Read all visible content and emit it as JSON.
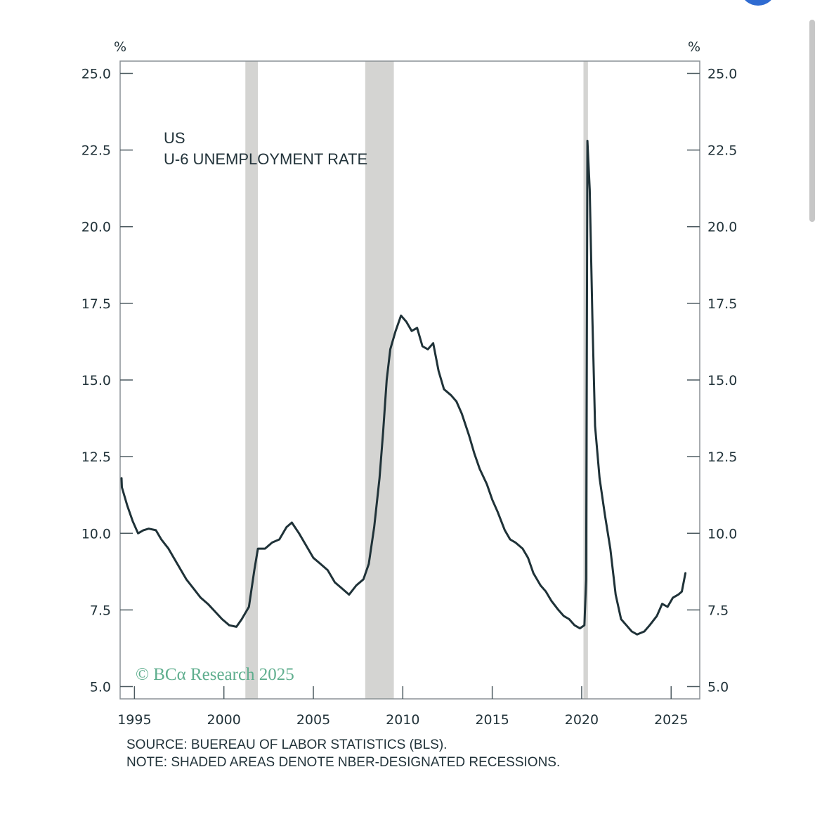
{
  "chart_data": {
    "type": "line",
    "title": "US",
    "subtitle": "U-6 UNEMPLOYMENT RATE",
    "y_unit_left": "%",
    "y_unit_right": "%",
    "xlim": [
      1994.2,
      2026.6
    ],
    "ylim": [
      4.6,
      25.4
    ],
    "x_ticks": [
      1995,
      2000,
      2005,
      2010,
      2015,
      2020,
      2025
    ],
    "y_tick_labels": [
      "5.0",
      "7.5",
      "10.0",
      "12.5",
      "15.0",
      "17.5",
      "20.0",
      "22.5",
      "25.0"
    ],
    "y_ticks": [
      5.0,
      7.5,
      10.0,
      12.5,
      15.0,
      17.5,
      20.0,
      22.5,
      25.0
    ],
    "grid": false,
    "line_color": "#1f3238",
    "recession_color": "#d4d4d2",
    "recessions": [
      {
        "start": 2001.2,
        "end": 2001.9
      },
      {
        "start": 2007.9,
        "end": 2009.5
      },
      {
        "start": 2020.1,
        "end": 2020.35
      }
    ],
    "series": [
      {
        "points": [
          [
            1994.0,
            11.8
          ],
          [
            1994.3,
            11.5
          ],
          [
            1994.6,
            10.9
          ],
          [
            1994.9,
            10.4
          ],
          [
            1995.2,
            10.0
          ],
          [
            1995.5,
            10.1
          ],
          [
            1995.8,
            10.15
          ],
          [
            1996.2,
            10.1
          ],
          [
            1996.5,
            9.8
          ],
          [
            1996.9,
            9.5
          ],
          [
            1997.2,
            9.2
          ],
          [
            1997.6,
            8.8
          ],
          [
            1997.9,
            8.5
          ],
          [
            1998.3,
            8.2
          ],
          [
            1998.7,
            7.9
          ],
          [
            1999.1,
            7.7
          ],
          [
            1999.5,
            7.45
          ],
          [
            1999.9,
            7.2
          ],
          [
            2000.3,
            7.0
          ],
          [
            2000.7,
            6.95
          ],
          [
            2001.0,
            7.2
          ],
          [
            2001.4,
            7.6
          ],
          [
            2001.7,
            8.8
          ],
          [
            2001.9,
            9.5
          ],
          [
            2002.3,
            9.5
          ],
          [
            2002.7,
            9.7
          ],
          [
            2003.1,
            9.8
          ],
          [
            2003.5,
            10.2
          ],
          [
            2003.8,
            10.35
          ],
          [
            2004.2,
            10.0
          ],
          [
            2004.6,
            9.6
          ],
          [
            2005.0,
            9.2
          ],
          [
            2005.4,
            9.0
          ],
          [
            2005.8,
            8.8
          ],
          [
            2006.2,
            8.4
          ],
          [
            2006.6,
            8.2
          ],
          [
            2007.0,
            8.0
          ],
          [
            2007.4,
            8.3
          ],
          [
            2007.8,
            8.5
          ],
          [
            2008.1,
            9.0
          ],
          [
            2008.4,
            10.2
          ],
          [
            2008.7,
            11.8
          ],
          [
            2008.9,
            13.3
          ],
          [
            2009.1,
            15.0
          ],
          [
            2009.3,
            16.0
          ],
          [
            2009.6,
            16.6
          ],
          [
            2009.9,
            17.1
          ],
          [
            2010.2,
            16.9
          ],
          [
            2010.5,
            16.6
          ],
          [
            2010.8,
            16.7
          ],
          [
            2011.1,
            16.1
          ],
          [
            2011.4,
            16.0
          ],
          [
            2011.7,
            16.2
          ],
          [
            2012.0,
            15.3
          ],
          [
            2012.3,
            14.7
          ],
          [
            2012.7,
            14.5
          ],
          [
            2013.0,
            14.3
          ],
          [
            2013.3,
            13.9
          ],
          [
            2013.7,
            13.2
          ],
          [
            2014.0,
            12.6
          ],
          [
            2014.3,
            12.1
          ],
          [
            2014.7,
            11.6
          ],
          [
            2015.0,
            11.1
          ],
          [
            2015.3,
            10.7
          ],
          [
            2015.7,
            10.1
          ],
          [
            2016.0,
            9.8
          ],
          [
            2016.3,
            9.7
          ],
          [
            2016.7,
            9.5
          ],
          [
            2017.0,
            9.2
          ],
          [
            2017.3,
            8.7
          ],
          [
            2017.7,
            8.3
          ],
          [
            2018.0,
            8.1
          ],
          [
            2018.3,
            7.8
          ],
          [
            2018.7,
            7.5
          ],
          [
            2019.0,
            7.3
          ],
          [
            2019.3,
            7.2
          ],
          [
            2019.6,
            7.0
          ],
          [
            2019.9,
            6.9
          ],
          [
            2020.15,
            7.0
          ],
          [
            2020.25,
            8.5
          ],
          [
            2020.32,
            22.8
          ],
          [
            2020.45,
            21.2
          ],
          [
            2020.6,
            17.0
          ],
          [
            2020.75,
            13.5
          ],
          [
            2021.0,
            11.8
          ],
          [
            2021.3,
            10.6
          ],
          [
            2021.6,
            9.5
          ],
          [
            2021.9,
            8.0
          ],
          [
            2022.2,
            7.2
          ],
          [
            2022.5,
            7.0
          ],
          [
            2022.8,
            6.8
          ],
          [
            2023.1,
            6.7
          ],
          [
            2023.5,
            6.8
          ],
          [
            2023.8,
            7.0
          ],
          [
            2024.2,
            7.3
          ],
          [
            2024.5,
            7.7
          ],
          [
            2024.8,
            7.6
          ],
          [
            2025.1,
            7.9
          ],
          [
            2025.4,
            8.0
          ],
          [
            2025.6,
            8.1
          ],
          [
            2025.8,
            8.7
          ]
        ]
      }
    ]
  },
  "footer": {
    "source": "SOURCE: BUEREAU OF LABOR STATISTICS (BLS).",
    "note": "NOTE: SHADED AREAS DENOTE NBER-DESIGNATED RECESSIONS."
  },
  "watermark": {
    "text": "© BCα Research 2025",
    "color": "#5fae8e"
  }
}
